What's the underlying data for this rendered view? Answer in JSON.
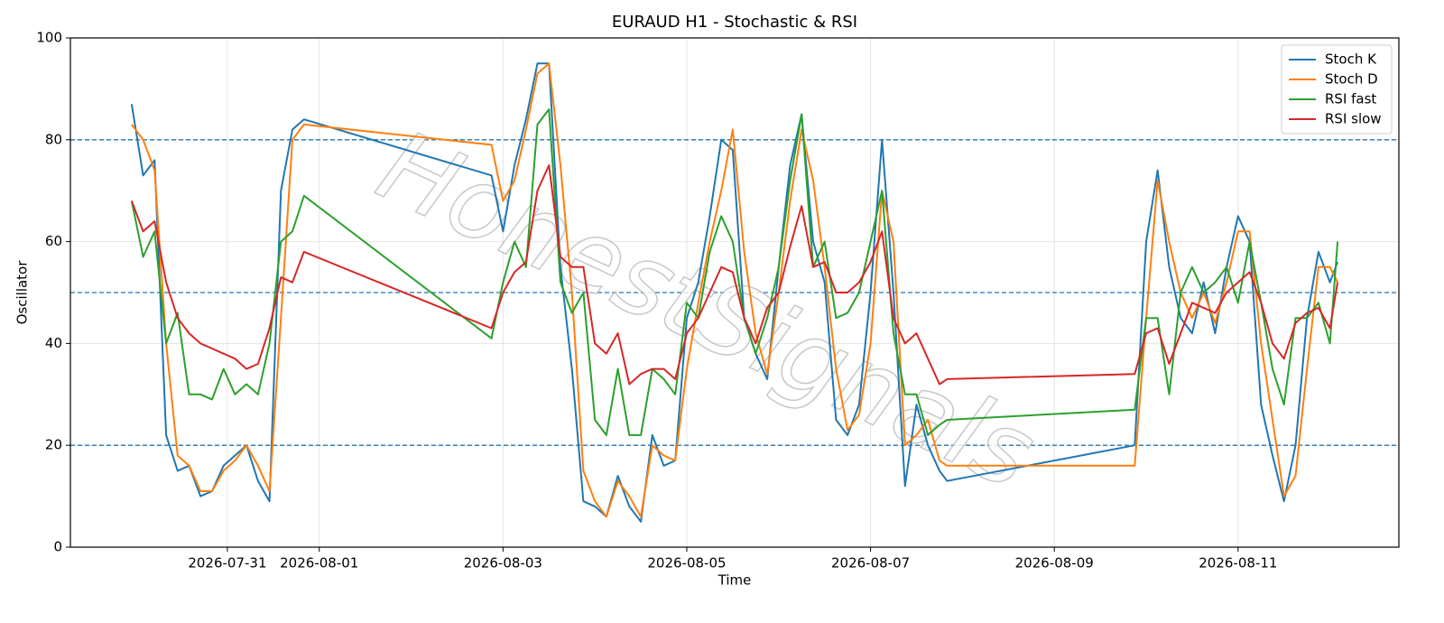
{
  "chart_data": {
    "type": "line",
    "title": "EURAUD H1 - Stochastic & RSI",
    "xlabel": "Time",
    "ylabel": "Oscillator",
    "watermark": "HonestSignals",
    "x": [
      "2026-07-29T23:00",
      "2026-07-30T02:00",
      "2026-07-30T05:00",
      "2026-07-30T08:00",
      "2026-07-30T11:00",
      "2026-07-30T14:00",
      "2026-07-30T17:00",
      "2026-07-30T20:00",
      "2026-07-30T23:00",
      "2026-07-31T02:00",
      "2026-07-31T05:00",
      "2026-07-31T08:00",
      "2026-07-31T11:00",
      "2026-07-31T14:00",
      "2026-07-31T17:00",
      "2026-07-31T20:00",
      "2026-08-02T21:00",
      "2026-08-03T00:00",
      "2026-08-03T03:00",
      "2026-08-03T06:00",
      "2026-08-03T09:00",
      "2026-08-03T12:00",
      "2026-08-03T15:00",
      "2026-08-03T18:00",
      "2026-08-03T21:00",
      "2026-08-04T00:00",
      "2026-08-04T03:00",
      "2026-08-04T06:00",
      "2026-08-04T09:00",
      "2026-08-04T12:00",
      "2026-08-04T15:00",
      "2026-08-04T18:00",
      "2026-08-04T21:00",
      "2026-08-05T00:00",
      "2026-08-05T03:00",
      "2026-08-05T06:00",
      "2026-08-05T09:00",
      "2026-08-05T12:00",
      "2026-08-05T15:00",
      "2026-08-05T18:00",
      "2026-08-05T21:00",
      "2026-08-06T00:00",
      "2026-08-06T03:00",
      "2026-08-06T06:00",
      "2026-08-06T09:00",
      "2026-08-06T12:00",
      "2026-08-06T15:00",
      "2026-08-06T18:00",
      "2026-08-06T21:00",
      "2026-08-07T00:00",
      "2026-08-07T03:00",
      "2026-08-07T06:00",
      "2026-08-07T09:00",
      "2026-08-07T12:00",
      "2026-08-07T15:00",
      "2026-08-07T18:00",
      "2026-08-07T20:00",
      "2026-08-09T21:00",
      "2026-08-10T00:00",
      "2026-08-10T03:00",
      "2026-08-10T06:00",
      "2026-08-10T09:00",
      "2026-08-10T12:00",
      "2026-08-10T15:00",
      "2026-08-10T18:00",
      "2026-08-10T21:00",
      "2026-08-11T00:00",
      "2026-08-11T03:00",
      "2026-08-11T06:00",
      "2026-08-11T09:00",
      "2026-08-11T12:00",
      "2026-08-11T15:00",
      "2026-08-11T18:00",
      "2026-08-11T21:00",
      "2026-08-12T00:00",
      "2026-08-12T02:00"
    ],
    "series": [
      {
        "name": "Stoch K",
        "color": "#1f77b4",
        "values": [
          87,
          73,
          76,
          22,
          15,
          16,
          10,
          11,
          16,
          18,
          20,
          13,
          9,
          70,
          82,
          84,
          73,
          62,
          75,
          84,
          95,
          95,
          55,
          35,
          9,
          8,
          6,
          14,
          8,
          5,
          22,
          16,
          17,
          45,
          52,
          65,
          80,
          78,
          45,
          38,
          33,
          55,
          75,
          85,
          60,
          52,
          25,
          22,
          28,
          50,
          80,
          50,
          12,
          28,
          20,
          15,
          13,
          20,
          60,
          74,
          55,
          45,
          42,
          52,
          42,
          55,
          65,
          60,
          28,
          18,
          9,
          20,
          45,
          58,
          52,
          56
        ]
      },
      {
        "name": "Stoch D",
        "color": "#ff7f0e",
        "values": [
          83,
          80,
          74,
          40,
          18,
          16,
          11,
          11,
          15,
          17,
          20,
          16,
          11,
          45,
          80,
          83,
          79,
          68,
          72,
          82,
          93,
          95,
          75,
          50,
          15,
          9,
          6,
          13,
          10,
          6,
          20,
          18,
          17,
          35,
          48,
          60,
          70,
          82,
          58,
          42,
          34,
          50,
          68,
          82,
          72,
          55,
          35,
          23,
          26,
          40,
          70,
          60,
          20,
          22,
          25,
          17,
          16,
          16,
          45,
          72,
          60,
          50,
          45,
          50,
          44,
          52,
          62,
          62,
          40,
          25,
          10,
          14,
          35,
          55,
          55,
          52
        ]
      },
      {
        "name": "RSI fast",
        "color": "#2ca02c",
        "values": [
          68,
          57,
          62,
          40,
          46,
          30,
          30,
          29,
          35,
          30,
          32,
          30,
          40,
          60,
          62,
          69,
          41,
          52,
          60,
          55,
          83,
          86,
          52,
          46,
          50,
          25,
          22,
          35,
          22,
          22,
          35,
          33,
          30,
          48,
          45,
          58,
          65,
          60,
          45,
          38,
          45,
          55,
          72,
          85,
          55,
          60,
          45,
          46,
          50,
          60,
          70,
          42,
          30,
          30,
          22,
          24,
          25,
          27,
          45,
          45,
          30,
          50,
          55,
          50,
          52,
          55,
          48,
          60,
          48,
          35,
          28,
          45,
          45,
          48,
          40,
          60
        ]
      },
      {
        "name": "RSI slow",
        "color": "#d62728",
        "values": [
          68,
          62,
          64,
          52,
          45,
          42,
          40,
          39,
          38,
          37,
          35,
          36,
          43,
          53,
          52,
          58,
          43,
          50,
          54,
          56,
          70,
          75,
          57,
          55,
          55,
          40,
          38,
          42,
          32,
          34,
          35,
          35,
          33,
          42,
          45,
          50,
          55,
          54,
          45,
          40,
          47,
          50,
          59,
          67,
          55,
          56,
          50,
          50,
          52,
          56,
          62,
          45,
          40,
          42,
          37,
          32,
          33,
          34,
          42,
          43,
          36,
          42,
          48,
          47,
          46,
          50,
          52,
          54,
          48,
          40,
          37,
          44,
          46,
          47,
          43,
          52
        ]
      }
    ],
    "xlim": [
      "2026-07-29T07:00",
      "2026-08-12T18:00"
    ],
    "xticks": [
      "2026-07-31",
      "2026-08-01",
      "2026-08-03",
      "2026-08-05",
      "2026-08-07",
      "2026-08-09",
      "2026-08-11"
    ],
    "ylim": [
      0,
      100
    ],
    "yticks": [
      0,
      20,
      40,
      60,
      80,
      100
    ],
    "hlines": [
      20,
      50,
      80
    ],
    "hline_color": "#1f77b4",
    "grid": true,
    "legend": "upper right"
  }
}
